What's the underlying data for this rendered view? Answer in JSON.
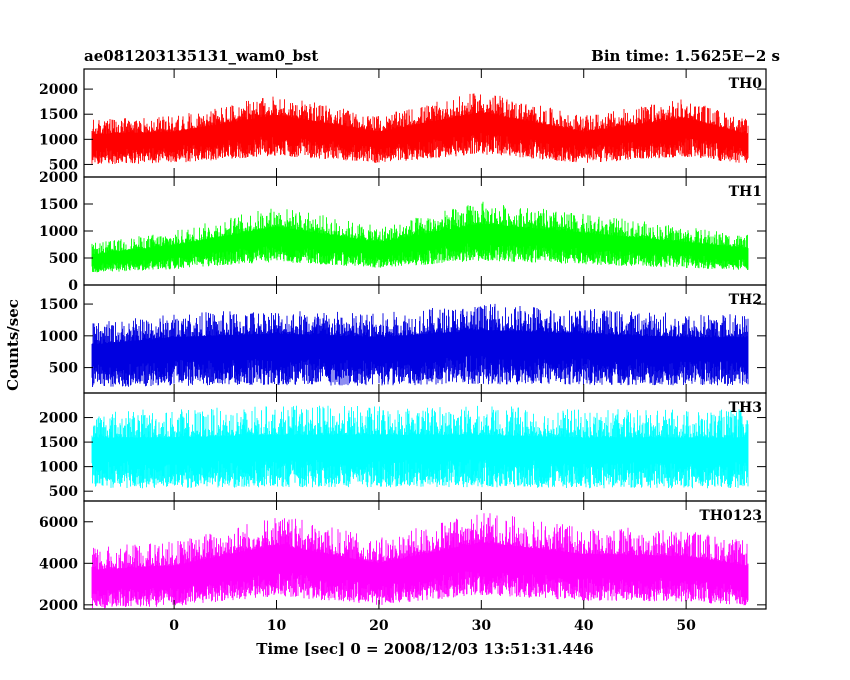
{
  "header": {
    "title": "ae081203135131_wam0_bst",
    "bin_time": "Bin time: 1.5625E−2 s"
  },
  "chart_data": {
    "type": "line",
    "xlabel": "Time [sec] 0 = 2008/12/03 13:51:31.446",
    "ylabel": "Counts/sec",
    "xlim": [
      -8.8,
      57.8
    ],
    "data_xrange": [
      -8,
      56
    ],
    "x_ticks": [
      "0",
      "10",
      "20",
      "30",
      "40",
      "50"
    ],
    "grid": false,
    "panels": [
      {
        "name": "TH0",
        "color": "#ff0000",
        "ylim": [
          250,
          2400
        ],
        "y_ticks": [
          "500",
          "1000",
          "1500",
          "2000"
        ],
        "baseline": [
          [
            -8,
            1000
          ],
          [
            0,
            1050
          ],
          [
            10,
            1350
          ],
          [
            20,
            1050
          ],
          [
            30,
            1400
          ],
          [
            40,
            1050
          ],
          [
            50,
            1300
          ],
          [
            56,
            1000
          ]
        ],
        "low_frac": 0.5,
        "high_frac": 0.4
      },
      {
        "name": "TH1",
        "color": "#00ff00",
        "ylim": [
          0,
          2000
        ],
        "y_ticks": [
          "0",
          "500",
          "1000",
          "1500",
          "2000"
        ],
        "baseline": [
          [
            -8,
            500
          ],
          [
            0,
            650
          ],
          [
            10,
            950
          ],
          [
            20,
            700
          ],
          [
            30,
            1000
          ],
          [
            40,
            850
          ],
          [
            50,
            700
          ],
          [
            56,
            600
          ]
        ],
        "low_frac": 0.55,
        "high_frac": 0.55
      },
      {
        "name": "TH2",
        "color": "#0000e0",
        "ylim": [
          100,
          1800
        ],
        "y_ticks": [
          "500",
          "1000",
          "1500"
        ],
        "baseline": [
          [
            -8,
            750
          ],
          [
            0,
            850
          ],
          [
            10,
            900
          ],
          [
            20,
            850
          ],
          [
            30,
            950
          ],
          [
            40,
            900
          ],
          [
            50,
            850
          ],
          [
            56,
            850
          ]
        ],
        "low_frac": 0.75,
        "high_frac": 0.6
      },
      {
        "name": "TH3",
        "color": "#00ffff",
        "ylim": [
          300,
          2500
        ],
        "y_ticks": [
          "500",
          "1000",
          "1500",
          "2000"
        ],
        "baseline": [
          [
            -8,
            1400
          ],
          [
            0,
            1400
          ],
          [
            10,
            1450
          ],
          [
            20,
            1450
          ],
          [
            30,
            1450
          ],
          [
            40,
            1400
          ],
          [
            50,
            1400
          ],
          [
            56,
            1400
          ]
        ],
        "low_frac": 0.6,
        "high_frac": 0.55
      },
      {
        "name": "TH0123",
        "color": "#ff00ff",
        "ylim": [
          1800,
          7000
        ],
        "y_ticks": [
          "2000",
          "4000",
          "6000"
        ],
        "baseline": [
          [
            -8,
            3300
          ],
          [
            0,
            3500
          ],
          [
            10,
            4400
          ],
          [
            20,
            3600
          ],
          [
            30,
            4500
          ],
          [
            40,
            4000
          ],
          [
            50,
            3900
          ],
          [
            56,
            3500
          ]
        ],
        "low_frac": 0.45,
        "high_frac": 0.45
      }
    ]
  }
}
